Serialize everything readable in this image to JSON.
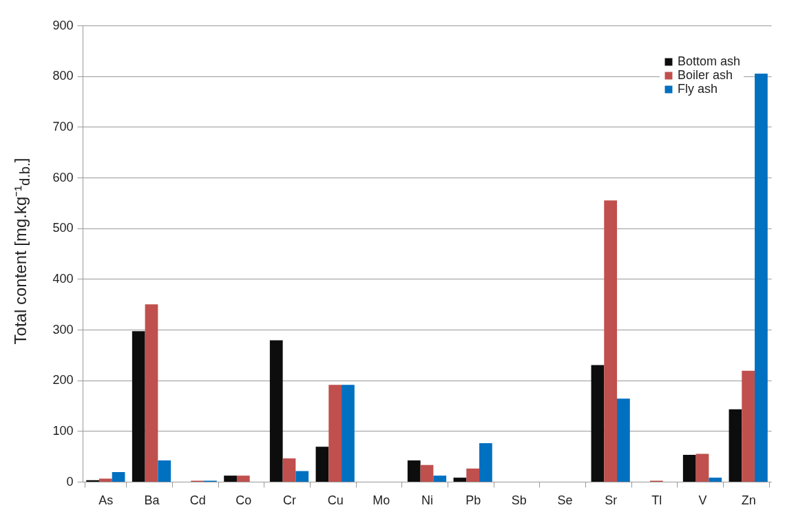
{
  "chart_data": {
    "type": "bar",
    "ylabel": "Total content [mg.kg⁻¹$_{d.b.}$]",
    "categories": [
      "As",
      "Ba",
      "Cd",
      "Co",
      "Cr",
      "Cu",
      "Mo",
      "Ni",
      "Pb",
      "Sb",
      "Se",
      "Sr",
      "Tl",
      "V",
      "Zn"
    ],
    "series": [
      {
        "name": "Bottom ash",
        "color": "#0d0d0d",
        "values": [
          3,
          297,
          0,
          12,
          279,
          69,
          0,
          42,
          8,
          0,
          0,
          230,
          0,
          53,
          143
        ]
      },
      {
        "name": "Boiler ash",
        "color": "#c0504d",
        "values": [
          6,
          350,
          2,
          12,
          46,
          191,
          0,
          33,
          26,
          0,
          0,
          555,
          2,
          55,
          219
        ]
      },
      {
        "name": "Fly ash",
        "color": "#0070c0",
        "values": [
          19,
          42,
          2,
          0,
          21,
          191,
          0,
          12,
          76,
          0,
          0,
          164,
          0,
          8,
          805
        ]
      }
    ],
    "ylim": [
      0,
      900
    ],
    "yticks": [
      0,
      100,
      200,
      300,
      400,
      500,
      600,
      700,
      800,
      900
    ],
    "grid": "y",
    "legend": "top right"
  }
}
